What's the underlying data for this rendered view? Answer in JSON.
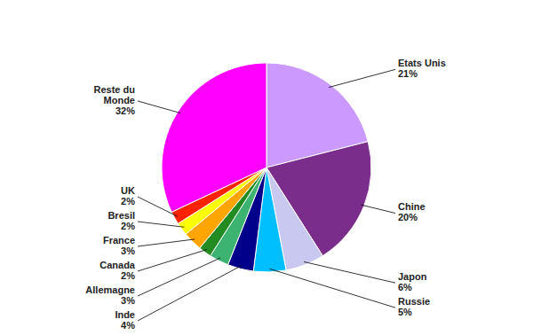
{
  "chart_data": {
    "type": "pie",
    "categories": [
      "Etats Unis",
      "Chine",
      "Japon",
      "Russie",
      "Inde",
      "Allemagne",
      "Canada",
      "France",
      "Bresil",
      "UK",
      "Reste du\nMonde"
    ],
    "values": [
      21,
      20,
      6,
      5,
      4,
      3,
      2,
      3,
      2,
      2,
      32
    ],
    "value_labels": [
      "21%",
      "20%",
      "6%",
      "5%",
      "4%",
      "3%",
      "2%",
      "3%",
      "2%",
      "2%",
      "32%"
    ],
    "colors": [
      "#cc99ff",
      "#7b2d8b",
      "#c8c8f0",
      "#00bfff",
      "#00008b",
      "#3cb371",
      "#228b22",
      "#ffa500",
      "#ffff00",
      "#ff2200",
      "#ff00ff"
    ],
    "data_labels": true
  }
}
